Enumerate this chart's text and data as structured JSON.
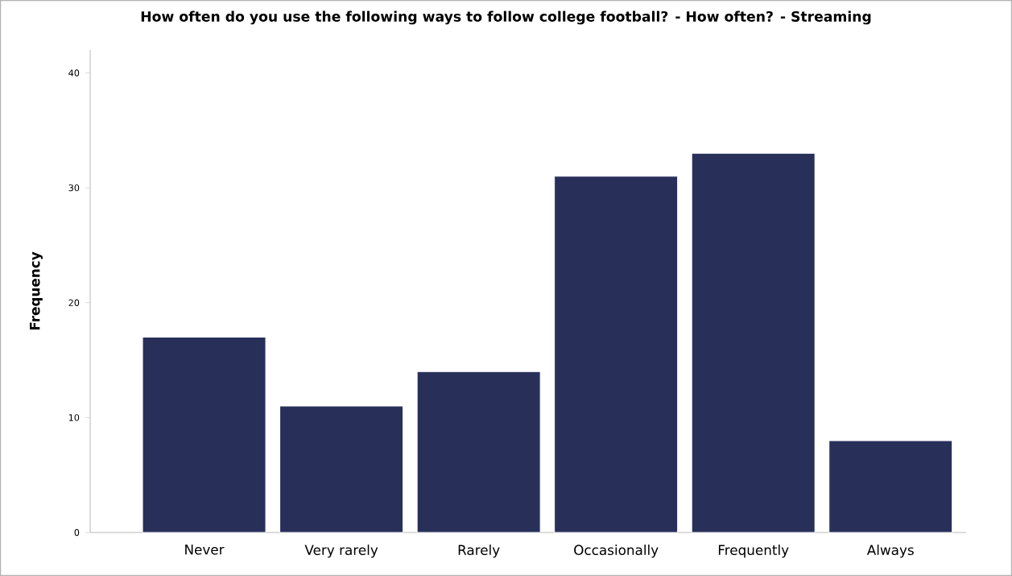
{
  "chart_data": {
    "type": "bar",
    "title": "How often do you use the following ways to follow college football?  - How often? - Streaming",
    "ylabel": "Frequency",
    "categories": [
      "Never",
      "Very rarely",
      "Rarely",
      "Occasionally",
      "Frequently",
      "Always"
    ],
    "values": [
      17,
      11,
      14,
      31,
      33,
      8
    ],
    "color": "#28305a",
    "ylim": [
      0,
      42
    ],
    "yticks": [
      0,
      10,
      20,
      30,
      40
    ],
    "grid": false
  }
}
